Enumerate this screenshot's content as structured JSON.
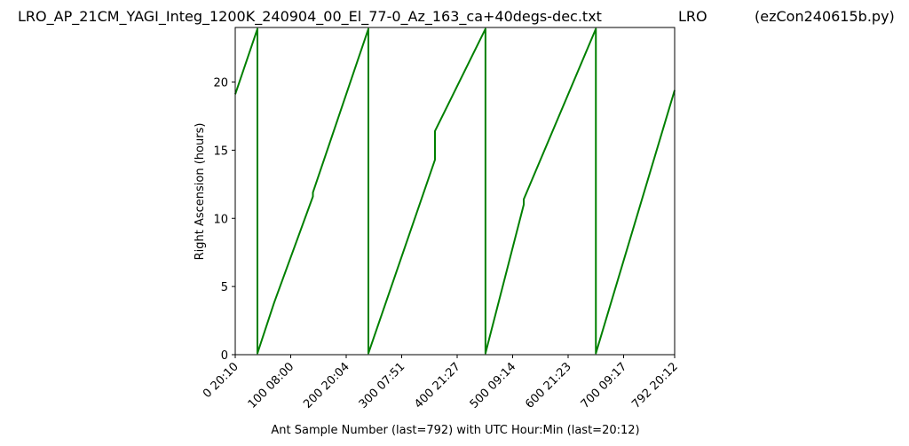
{
  "header": {
    "filename": "LRO_AP_21CM_YAGI_Integ_1200K_240904_00_El_77-0_Az_163_ca+40degs-dec.txt",
    "site": "LRO",
    "program": "(ezCon240615b.py)"
  },
  "chart_data": {
    "type": "line",
    "title": "",
    "xlabel": "Ant Sample Number (last=792) with UTC Hour:Min (last=20:12)",
    "ylabel": "Right Ascension (hours)",
    "xlim": [
      0,
      792
    ],
    "ylim": [
      0,
      24
    ],
    "x_ticks": [
      {
        "value": 0,
        "label": "0  20:10"
      },
      {
        "value": 100,
        "label": "100  08:00"
      },
      {
        "value": 200,
        "label": "200  20:04"
      },
      {
        "value": 300,
        "label": "300  07:51"
      },
      {
        "value": 400,
        "label": "400  21:27"
      },
      {
        "value": 500,
        "label": "500  09:14"
      },
      {
        "value": 600,
        "label": "600  21:23"
      },
      {
        "value": 700,
        "label": "700  09:17"
      },
      {
        "value": 792,
        "label": "792  20:12"
      }
    ],
    "y_ticks": [
      0,
      5,
      10,
      15,
      20
    ],
    "grid": false,
    "series": [
      {
        "color": "#008000",
        "x": [
          0,
          40,
          40,
          70,
          140,
          140,
          240,
          240,
          360,
          360,
          451,
          451,
          520,
          520,
          650,
          650,
          792
        ],
        "y": [
          19.1,
          23.9,
          0.1,
          3.8,
          11.6,
          11.9,
          23.9,
          0.1,
          14.3,
          16.4,
          23.9,
          0.1,
          11.0,
          11.4,
          23.9,
          0.1,
          19.4
        ]
      }
    ]
  }
}
